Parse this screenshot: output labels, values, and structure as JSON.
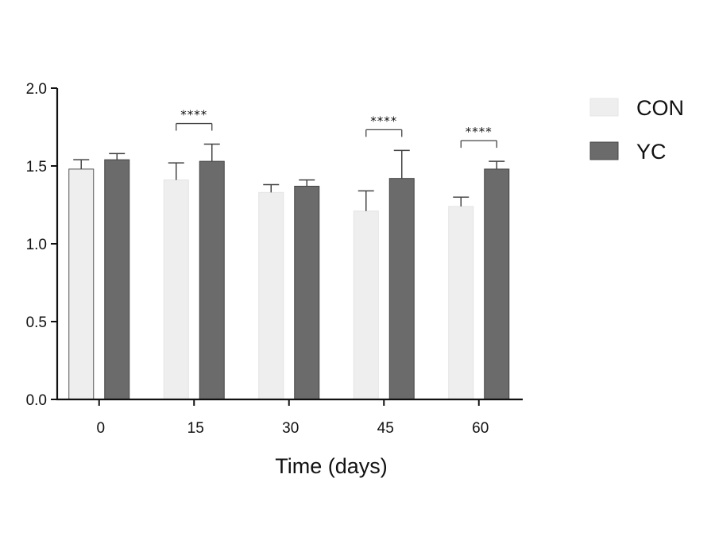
{
  "chart_data": {
    "type": "bar",
    "xlabel": "Time (days)",
    "ylabel": "",
    "ylim": [
      0,
      2.0
    ],
    "yticks": [
      "0.0",
      "0.5",
      "1.0",
      "1.5",
      "2.0"
    ],
    "categories": [
      "0",
      "15",
      "30",
      "45",
      "60"
    ],
    "series": [
      {
        "name": "CON",
        "color": "#eeeeee",
        "values": [
          1.48,
          1.41,
          1.33,
          1.21,
          1.24
        ],
        "errors": [
          0.06,
          0.11,
          0.05,
          0.13,
          0.06
        ]
      },
      {
        "name": "YC",
        "color": "#6b6b6b",
        "values": [
          1.54,
          1.53,
          1.37,
          1.42,
          1.48
        ],
        "errors": [
          0.04,
          0.11,
          0.04,
          0.18,
          0.05
        ]
      }
    ],
    "significance": [
      {
        "category": "15",
        "label": "****"
      },
      {
        "category": "45",
        "label": "****"
      },
      {
        "category": "60",
        "label": "****"
      }
    ],
    "legend_position": "top-right",
    "grid": false
  }
}
